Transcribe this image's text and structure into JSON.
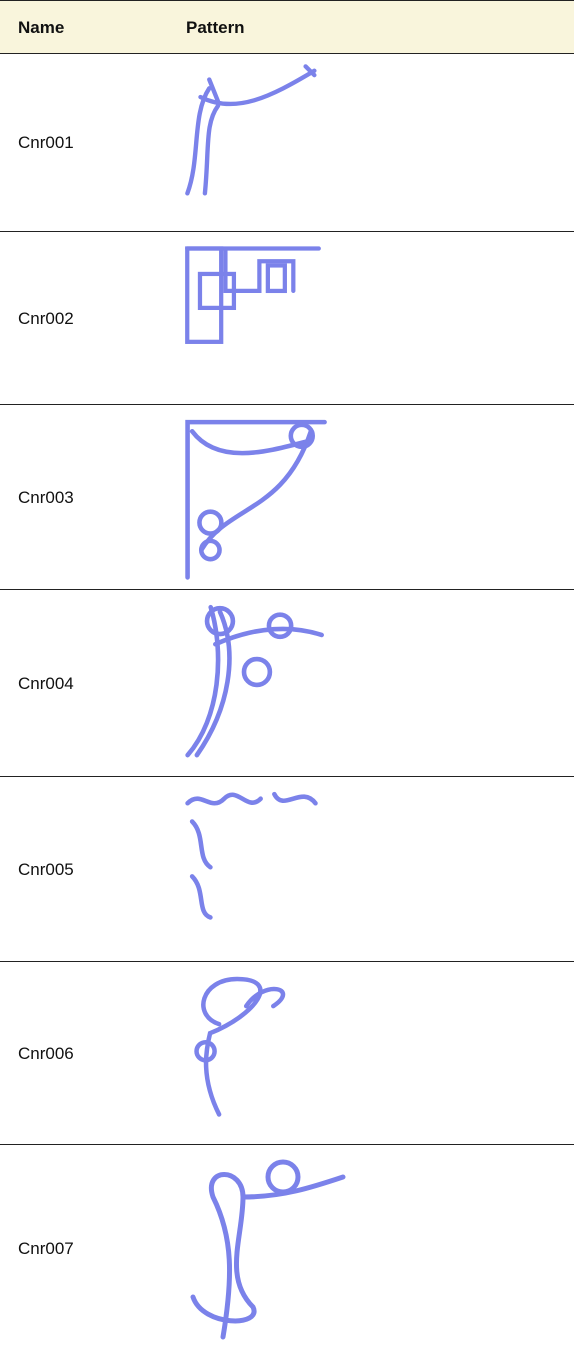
{
  "table": {
    "columns": [
      "Name",
      "Pattern"
    ],
    "rows": [
      [
        "Cnr001"
      ],
      [
        "Cnr002"
      ],
      [
        "Cnr003"
      ],
      [
        "Cnr004"
      ],
      [
        "Cnr005"
      ],
      [
        "Cnr006"
      ],
      [
        "Cnr007"
      ]
    ]
  }
}
